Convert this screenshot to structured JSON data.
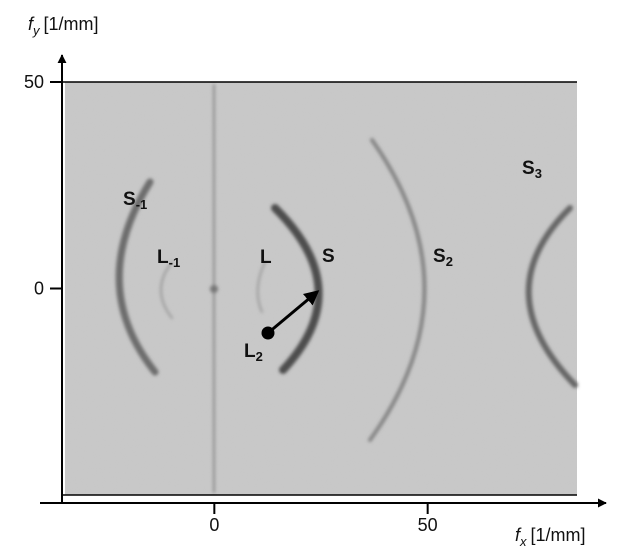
{
  "chart_data": {
    "type": "image",
    "x_label": {
      "symbol": "f",
      "sub": "x",
      "unit": "[1/mm]"
    },
    "y_label": {
      "symbol": "f",
      "sub": "y",
      "unit": "[1/mm]"
    },
    "xlim": [
      -35,
      85
    ],
    "ylim": [
      -50,
      50
    ],
    "xticks": [
      0,
      50
    ],
    "yticks": [
      0,
      50
    ],
    "annotations": [
      {
        "text": "S",
        "sub": "-1"
      },
      {
        "text": "L",
        "sub": "-1"
      },
      {
        "text": "L"
      },
      {
        "text": "S"
      },
      {
        "text": "S",
        "sub": "2"
      },
      {
        "text": "L",
        "sub": "2"
      },
      {
        "text": "S",
        "sub": "3"
      }
    ]
  }
}
